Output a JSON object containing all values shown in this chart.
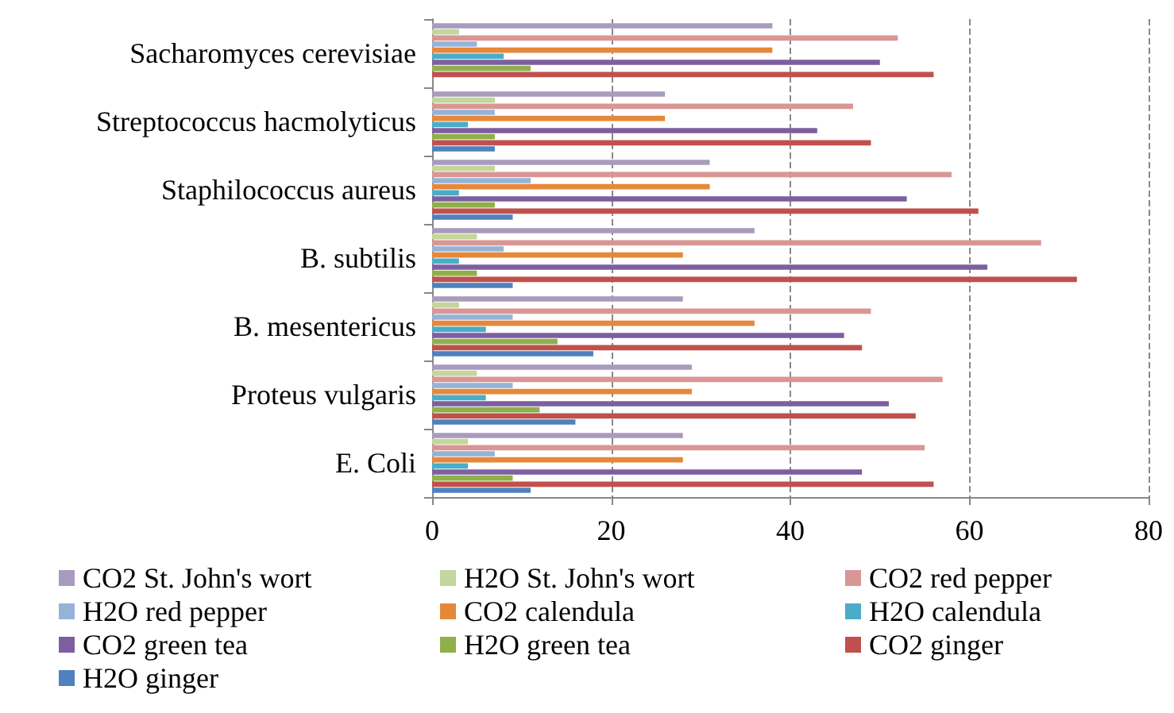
{
  "chart_data": {
    "type": "bar",
    "orientation": "horizontal",
    "categories": [
      "Sacharomyces cerevisiae",
      "Streptococcus hacmolyticus",
      "Staphilococcus aureus",
      "B. subtilis",
      "B. mesentericus",
      "Proteus vulgaris",
      "E. Coli"
    ],
    "series": [
      {
        "name": "CO2 St. John's wort",
        "color": "#a99bbd",
        "values": [
          38,
          26,
          31,
          36,
          28,
          29,
          28
        ]
      },
      {
        "name": "H2O St. John's wort",
        "color": "#c3d69b",
        "values": [
          3,
          7,
          7,
          5,
          3,
          5,
          4
        ]
      },
      {
        "name": "CO2 red pepper",
        "color": "#d99694",
        "values": [
          52,
          47,
          58,
          68,
          49,
          57,
          55
        ]
      },
      {
        "name": "H2O red pepper",
        "color": "#95b3d7",
        "values": [
          5,
          7,
          11,
          8,
          9,
          9,
          7
        ]
      },
      {
        "name": "CO2 calendula",
        "color": "#e6883a",
        "values": [
          38,
          26,
          31,
          28,
          36,
          29,
          28
        ]
      },
      {
        "name": "H2O calendula",
        "color": "#4bacc6",
        "values": [
          8,
          4,
          3,
          3,
          6,
          6,
          4
        ]
      },
      {
        "name": "CO2 green tea",
        "color": "#7d5fa0",
        "values": [
          50,
          43,
          53,
          62,
          46,
          51,
          48
        ]
      },
      {
        "name": "H2O green tea",
        "color": "#8eb04a",
        "values": [
          11,
          7,
          7,
          5,
          14,
          12,
          9
        ]
      },
      {
        "name": "CO2 ginger",
        "color": "#c0504d",
        "values": [
          56,
          49,
          61,
          72,
          48,
          54,
          56
        ]
      },
      {
        "name": "H2O ginger",
        "color": "#4f81bd",
        "values": [
          0,
          7,
          9,
          9,
          18,
          16,
          11
        ]
      }
    ],
    "xlim": [
      0,
      80
    ],
    "xticks": [
      0,
      20,
      40,
      60,
      80
    ],
    "grid": "x",
    "legend": "bottom"
  }
}
